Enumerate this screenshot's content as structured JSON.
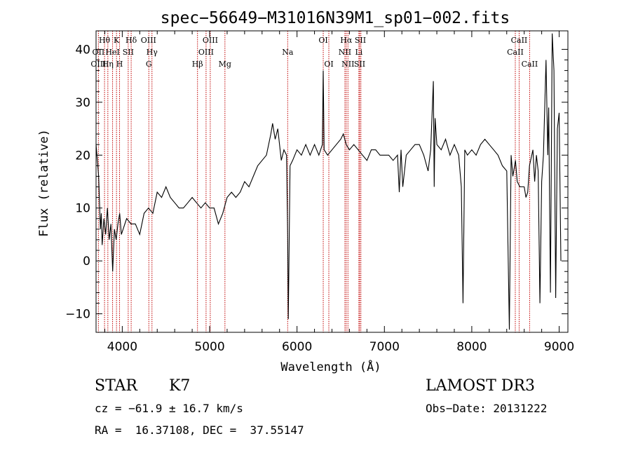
{
  "chart_data": {
    "type": "line",
    "title": "spec−56649−M31016N39M1_sp01−002.fits",
    "xlabel": "Wavelength (Å)",
    "ylabel": "Flux (relative)",
    "xlim": [
      3700,
      9100
    ],
    "ylim": [
      -13.5,
      43.5
    ],
    "x_ticks": [
      4000,
      5000,
      6000,
      7000,
      8000,
      9000
    ],
    "y_ticks": [
      -10,
      0,
      10,
      20,
      30,
      40
    ],
    "grid": false,
    "series": [
      {
        "x": [
          3700,
          3730,
          3750,
          3760,
          3770,
          3790,
          3810,
          3830,
          3850,
          3870,
          3890,
          3910,
          3930,
          3950,
          3970,
          3990,
          4010,
          4050,
          4100,
          4150,
          4200,
          4250,
          4300,
          4350,
          4400,
          4450,
          4500,
          4550,
          4600,
          4650,
          4700,
          4750,
          4800,
          4850,
          4900,
          4950,
          5000,
          5050,
          5100,
          5150,
          5200,
          5250,
          5300,
          5350,
          5400,
          5450,
          5500,
          5550,
          5600,
          5650,
          5700,
          5720,
          5750,
          5780,
          5800,
          5820,
          5850,
          5880,
          5893,
          5900,
          5920,
          5950,
          6000,
          6050,
          6100,
          6150,
          6200,
          6250,
          6290,
          6300,
          6310,
          6350,
          6400,
          6450,
          6500,
          6530,
          6563,
          6600,
          6650,
          6700,
          6750,
          6800,
          6850,
          6900,
          6950,
          7000,
          7050,
          7100,
          7150,
          7170,
          7190,
          7210,
          7250,
          7300,
          7350,
          7400,
          7450,
          7500,
          7530,
          7560,
          7570,
          7580,
          7600,
          7650,
          7700,
          7750,
          7800,
          7850,
          7880,
          7900,
          7920,
          7950,
          8000,
          8050,
          8100,
          8150,
          8200,
          8250,
          8300,
          8350,
          8400,
          8430,
          8450,
          8470,
          8500,
          8520,
          8550,
          8600,
          8620,
          8640,
          8660,
          8700,
          8720,
          8740,
          8760,
          8780,
          8800,
          8820,
          8850,
          8870,
          8880,
          8900,
          8920,
          8940,
          8960,
          8980,
          9000,
          9020
        ],
        "y": [
          22,
          16,
          6,
          9,
          3,
          8,
          5,
          10,
          4,
          7,
          -2,
          6,
          4,
          7,
          9,
          5,
          6,
          8,
          7,
          7,
          5,
          9,
          10,
          9,
          13,
          12,
          14,
          12,
          11,
          10,
          10,
          11,
          12,
          11,
          10,
          11,
          10,
          10,
          7,
          9,
          12,
          13,
          12,
          13,
          15,
          14,
          16,
          18,
          19,
          20,
          24,
          26,
          23,
          25,
          22,
          19,
          21,
          20,
          5,
          -11,
          18,
          19,
          21,
          20,
          22,
          20,
          22,
          20,
          22,
          36,
          21,
          20,
          21,
          22,
          23,
          24,
          22,
          21,
          22,
          21,
          20,
          19,
          21,
          21,
          20,
          20,
          20,
          19,
          20,
          13,
          21,
          14,
          20,
          21,
          22,
          22,
          20,
          17,
          21,
          34,
          14,
          27,
          22,
          21,
          23,
          20,
          22,
          20,
          14,
          -8,
          21,
          20,
          21,
          20,
          22,
          23,
          22,
          21,
          20,
          18,
          17,
          -13,
          20,
          16,
          19,
          15,
          14,
          14,
          12,
          13,
          18,
          21,
          15,
          20,
          17,
          -8,
          15,
          20,
          38,
          20,
          29,
          -6,
          43,
          36,
          -7,
          25,
          28,
          0
        ]
      }
    ],
    "line_labels": [
      {
        "text": "Hθ",
        "x": 3797,
        "row": 1
      },
      {
        "text": "K",
        "x": 3934,
        "row": 1
      },
      {
        "text": "Hδ",
        "x": 4102,
        "row": 1
      },
      {
        "text": "OIII",
        "x": 4300,
        "row": 1
      },
      {
        "text": "OIII",
        "x": 5007,
        "row": 1
      },
      {
        "text": "OI",
        "x": 6300,
        "row": 1
      },
      {
        "text": "Hα",
        "x": 6563,
        "row": 1
      },
      {
        "text": "SII",
        "x": 6725,
        "row": 1
      },
      {
        "text": "CaII",
        "x": 8542,
        "row": 1
      },
      {
        "text": "OII",
        "x": 3727,
        "row": 2
      },
      {
        "text": "HeI",
        "x": 3889,
        "row": 2
      },
      {
        "text": "SII",
        "x": 4068,
        "row": 2
      },
      {
        "text": "Hγ",
        "x": 4340,
        "row": 2
      },
      {
        "text": "OIII",
        "x": 4959,
        "row": 2
      },
      {
        "text": "Na",
        "x": 5893,
        "row": 2
      },
      {
        "text": "NII",
        "x": 6548,
        "row": 2
      },
      {
        "text": "Li",
        "x": 6708,
        "row": 2
      },
      {
        "text": "CaII",
        "x": 8498,
        "row": 2
      },
      {
        "text": "OIII",
        "x": 3727,
        "row": 3
      },
      {
        "text": "Hη",
        "x": 3835,
        "row": 3
      },
      {
        "text": "H",
        "x": 3969,
        "row": 3
      },
      {
        "text": "G",
        "x": 4304,
        "row": 3
      },
      {
        "text": "Hβ",
        "x": 4861,
        "row": 3
      },
      {
        "text": "Mg",
        "x": 5175,
        "row": 3
      },
      {
        "text": "OI",
        "x": 6364,
        "row": 3
      },
      {
        "text": "NII",
        "x": 6583,
        "row": 3
      },
      {
        "text": "SII",
        "x": 6717,
        "row": 3
      },
      {
        "text": "CaII",
        "x": 8662,
        "row": 3
      }
    ],
    "line_positions": [
      3727,
      3797,
      3835,
      3889,
      3934,
      3969,
      4068,
      4102,
      4304,
      4340,
      4861,
      4959,
      5007,
      5175,
      5893,
      6300,
      6364,
      6548,
      6563,
      6583,
      6708,
      6717,
      6731,
      8498,
      8542,
      8662
    ]
  },
  "info": {
    "object_class": "STAR",
    "subclass": "K7",
    "survey": "LAMOST DR3",
    "redshift": "cz = −61.9 ± 16.7 km/s",
    "obs_date": "Obs−Date: 20131222",
    "coords": "RA =  16.37108, DEC =  37.55147"
  },
  "colors": {
    "spectrum": "#000000",
    "line_markers": "#c00000",
    "axes": "#000000"
  }
}
